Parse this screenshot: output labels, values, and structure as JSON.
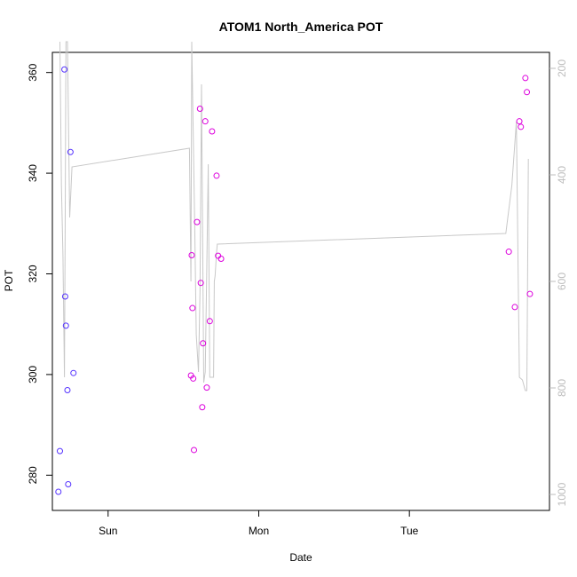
{
  "chart_data": {
    "type": "scatter",
    "title": "ATOM1 North_America POT",
    "xlabel": "Date",
    "ylabel": "POT",
    "x_ticks": [
      "Sun",
      "Mon",
      "Tue"
    ],
    "y_ticks": [
      "280",
      "300",
      "320",
      "340",
      "360"
    ],
    "y2_ticks": [
      "200",
      "400",
      "600",
      "800",
      "1000"
    ],
    "xlim": [
      -0.37,
      2.93
    ],
    "ylim": [
      273,
      364
    ],
    "y2lim": [
      1030,
      170
    ],
    "grid": false,
    "legend": "none",
    "colors": {
      "line": "#c8c8c8",
      "frame": "#000000",
      "right_axis": "#bdbdbd"
    },
    "points": [
      {
        "x": -0.33,
        "y": 276.7,
        "color": "#5533ff"
      },
      {
        "x": -0.32,
        "y": 284.8,
        "color": "#5533ff"
      },
      {
        "x": -0.29,
        "y": 360.6,
        "color": "#5533ff"
      },
      {
        "x": -0.285,
        "y": 315.5,
        "color": "#5533ff"
      },
      {
        "x": -0.28,
        "y": 309.7,
        "color": "#5533ff"
      },
      {
        "x": -0.27,
        "y": 296.9,
        "color": "#5533ff"
      },
      {
        "x": -0.265,
        "y": 278.2,
        "color": "#5533ff"
      },
      {
        "x": -0.25,
        "y": 344.2,
        "color": "#5533ff"
      },
      {
        "x": -0.23,
        "y": 300.3,
        "color": "#5533ff"
      },
      {
        "x": 0.55,
        "y": 299.8,
        "color": "#dd00dd"
      },
      {
        "x": 0.555,
        "y": 323.7,
        "color": "#dd00dd"
      },
      {
        "x": 0.56,
        "y": 313.2,
        "color": "#dd00dd"
      },
      {
        "x": 0.565,
        "y": 299.2,
        "color": "#dd00dd"
      },
      {
        "x": 0.57,
        "y": 285.0,
        "color": "#dd00dd"
      },
      {
        "x": 0.59,
        "y": 330.3,
        "color": "#dd00dd"
      },
      {
        "x": 0.61,
        "y": 352.8,
        "color": "#dd00dd"
      },
      {
        "x": 0.615,
        "y": 318.2,
        "color": "#dd00dd"
      },
      {
        "x": 0.625,
        "y": 293.5,
        "color": "#dd00dd"
      },
      {
        "x": 0.63,
        "y": 306.2,
        "color": "#dd00dd"
      },
      {
        "x": 0.645,
        "y": 350.3,
        "color": "#dd00dd"
      },
      {
        "x": 0.655,
        "y": 297.4,
        "color": "#dd00dd"
      },
      {
        "x": 0.675,
        "y": 310.6,
        "color": "#dd00dd"
      },
      {
        "x": 0.69,
        "y": 348.3,
        "color": "#dd00dd"
      },
      {
        "x": 0.72,
        "y": 339.5,
        "color": "#dd00dd"
      },
      {
        "x": 0.73,
        "y": 323.6,
        "color": "#dd00dd"
      },
      {
        "x": 0.75,
        "y": 323.0,
        "color": "#dd00dd"
      },
      {
        "x": 2.66,
        "y": 324.4,
        "color": "#dd00dd"
      },
      {
        "x": 2.7,
        "y": 313.4,
        "color": "#dd00dd"
      },
      {
        "x": 2.73,
        "y": 350.3,
        "color": "#dd00dd"
      },
      {
        "x": 2.74,
        "y": 349.2,
        "color": "#dd00dd"
      },
      {
        "x": 2.77,
        "y": 358.9,
        "color": "#dd00dd"
      },
      {
        "x": 2.78,
        "y": 356.1,
        "color": "#dd00dd"
      },
      {
        "x": 2.8,
        "y": 316.0,
        "color": "#dd00dd"
      }
    ],
    "line_series": {
      "axis": "right",
      "values": [
        [
          -0.32,
          150
        ],
        [
          -0.31,
          420
        ],
        [
          -0.3,
          550
        ],
        [
          -0.29,
          780
        ],
        [
          -0.285,
          500
        ],
        [
          -0.28,
          150
        ],
        [
          -0.27,
          150
        ],
        [
          -0.255,
          480
        ],
        [
          -0.24,
          385
        ],
        [
          0.54,
          350
        ],
        [
          0.55,
          600
        ],
        [
          0.555,
          150
        ],
        [
          0.575,
          500
        ],
        [
          0.585,
          700
        ],
        [
          0.6,
          770
        ],
        [
          0.61,
          620
        ],
        [
          0.62,
          230
        ],
        [
          0.635,
          790
        ],
        [
          0.645,
          770
        ],
        [
          0.655,
          580
        ],
        [
          0.665,
          380
        ],
        [
          0.675,
          780
        ],
        [
          0.685,
          780
        ],
        [
          0.7,
          780
        ],
        [
          0.705,
          600
        ],
        [
          0.71,
          590
        ],
        [
          0.72,
          545
        ],
        [
          0.725,
          530
        ],
        [
          2.64,
          510
        ],
        [
          2.68,
          420
        ],
        [
          2.71,
          300
        ],
        [
          2.73,
          780
        ],
        [
          2.75,
          785
        ],
        [
          2.77,
          805
        ],
        [
          2.78,
          805
        ],
        [
          2.79,
          370
        ]
      ]
    }
  }
}
